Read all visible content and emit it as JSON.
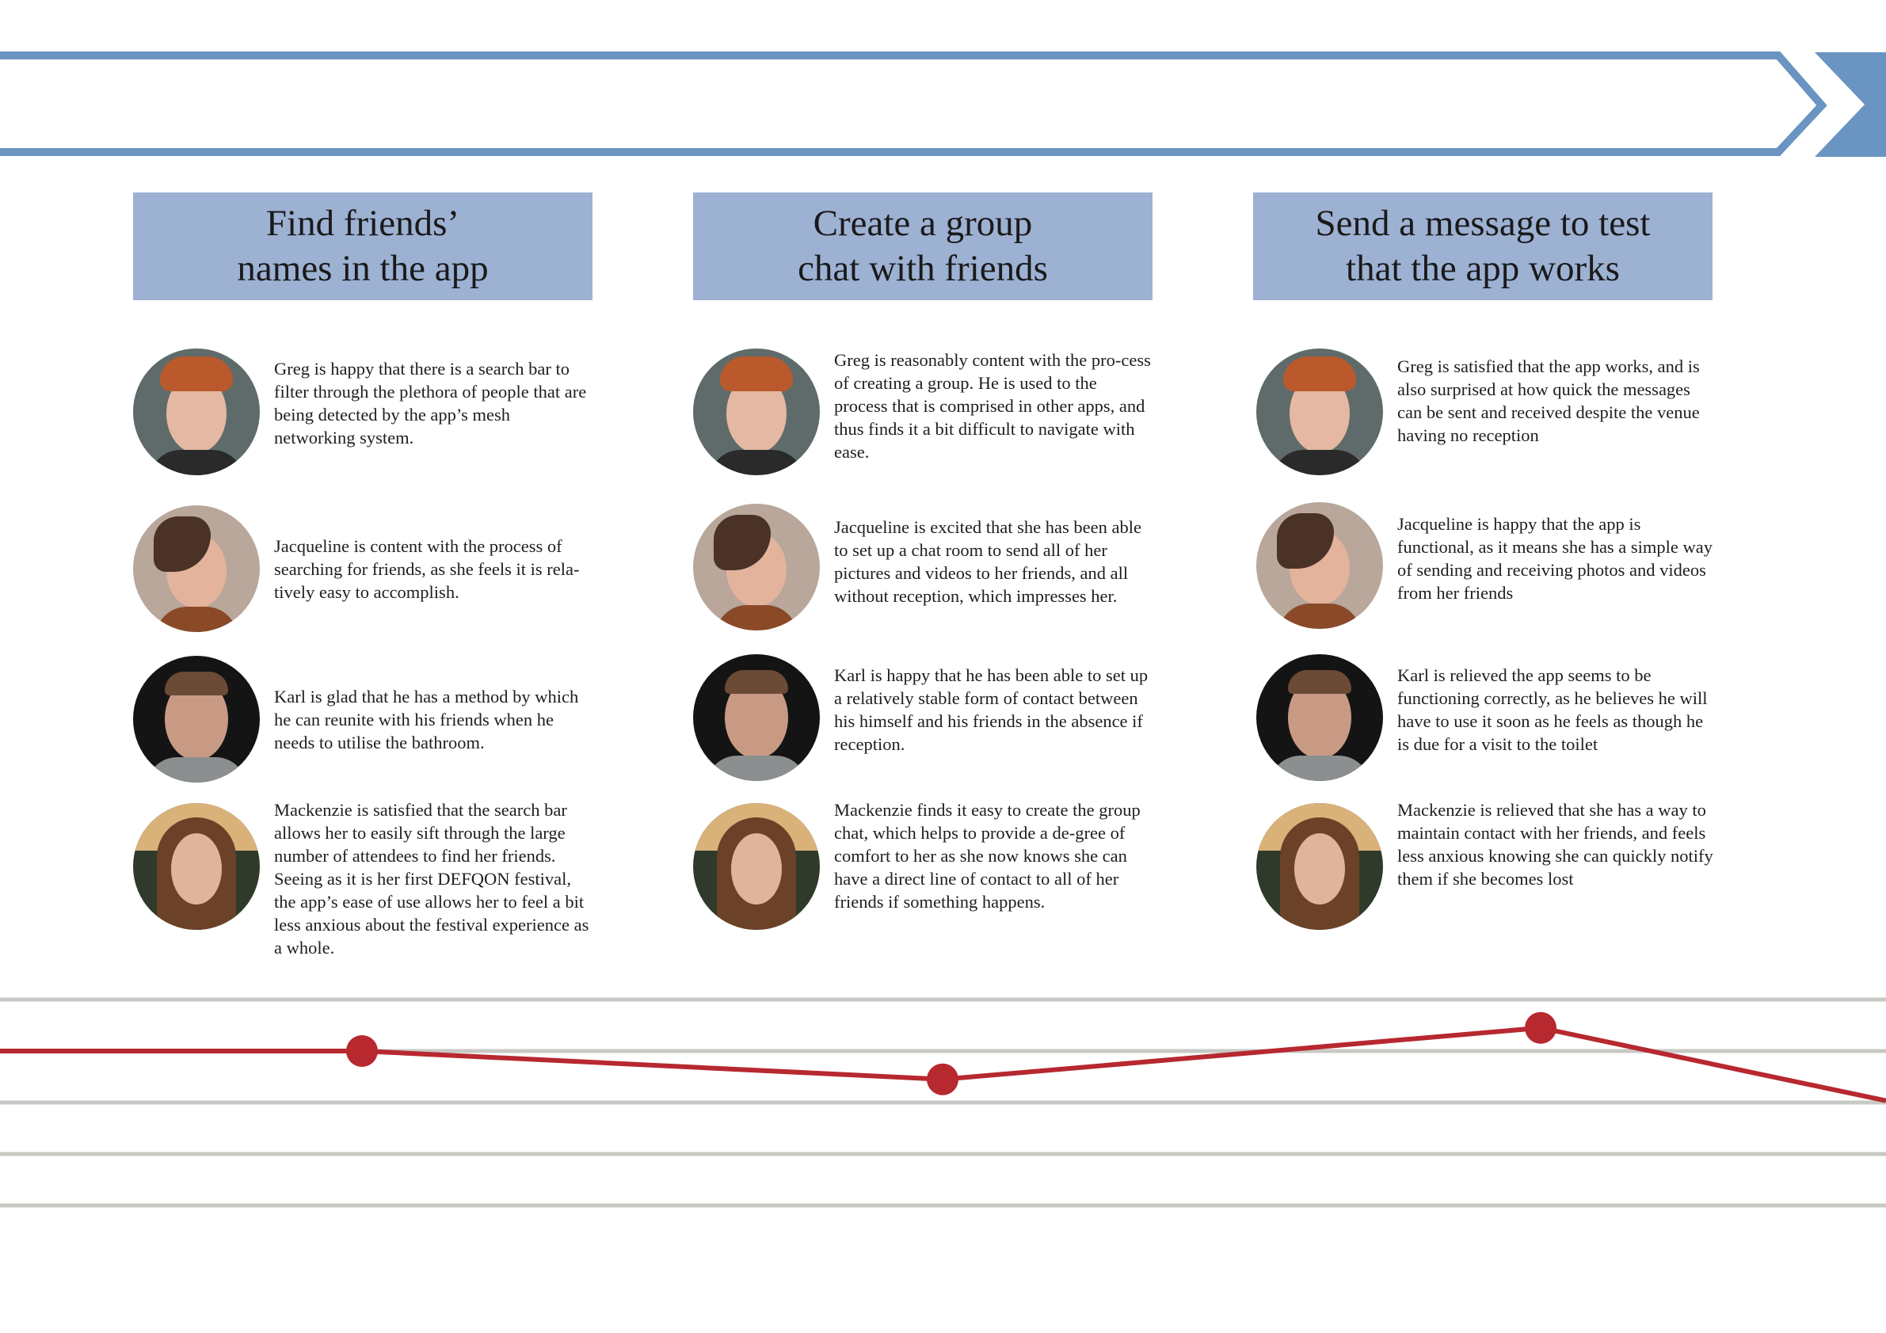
{
  "colors": {
    "banner": "#6a94c1",
    "header_fill": "#9db1d3",
    "line": "#b7282f",
    "gridline": "#c8c8c4"
  },
  "stages": [
    {
      "title": "Find friends’\nnames in the app",
      "personas": [
        {
          "name": "Greg",
          "icon": "greg-portrait",
          "text": "Greg is happy that there is a search bar to filter through the plethora of people that are being detected by the app’s mesh networking system."
        },
        {
          "name": "Jacqueline",
          "icon": "jacqueline-portrait",
          "text": "Jacqueline is content with the process of searching for friends, as she feels it is rela-tively easy to accomplish."
        },
        {
          "name": "Karl",
          "icon": "karl-portrait",
          "text": "Karl is glad that he has a method by which he can reunite with his friends when he needs to utilise the bathroom."
        },
        {
          "name": "Mackenzie",
          "icon": "mackenzie-portrait",
          "text": "Mackenzie is satisfied that the search bar allows her to easily sift through the large number of attendees to find her friends. Seeing as it is her first DEFQON festival, the app’s ease of use allows her to feel a bit less anxious about the festival experience as a whole."
        }
      ]
    },
    {
      "title": "Create a group\nchat with friends",
      "personas": [
        {
          "name": "Greg",
          "icon": "greg-portrait",
          "text": "Greg is reasonably content with the pro-cess of creating a group. He is used to the process that is comprised in other apps, and thus finds it a bit difficult to navigate with ease."
        },
        {
          "name": "Jacqueline",
          "icon": "jacqueline-portrait",
          "text": "Jacqueline is excited that she has been able to set up a chat room to send all of her pictures and videos to her friends, and all without reception, which impresses her."
        },
        {
          "name": "Karl",
          "icon": "karl-portrait",
          "text": "Karl is happy that he has been able to set up a relatively stable form of contact between his himself and his friends in the absence if reception."
        },
        {
          "name": "Mackenzie",
          "icon": "mackenzie-portrait",
          "text": "Mackenzie finds it easy to create the group chat, which helps to provide a de-gree of comfort to her as she now knows she can have a direct line of contact to all of her friends if something happens."
        }
      ]
    },
    {
      "title": "Send a message to test\nthat the app works",
      "personas": [
        {
          "name": "Greg",
          "icon": "greg-portrait",
          "text": "Greg is satisfied that the app works, and is also surprised at how quick the messages can be sent and received despite the venue having no reception"
        },
        {
          "name": "Jacqueline",
          "icon": "jacqueline-portrait",
          "text": "Jacqueline is happy that the app is functional, as it means she has a simple way of sending and receiving photos and videos from her friends"
        },
        {
          "name": "Karl",
          "icon": "karl-portrait",
          "text": "Karl is relieved the app seems to be functioning correctly, as he believes he will have to use it soon as he feels as though he is due for a visit to the toilet"
        },
        {
          "name": "Mackenzie",
          "icon": "mackenzie-portrait",
          "text": "Mackenzie is relieved that she has a way to maintain contact with her friends, and feels less anxious knowing she can quickly notify them if she becomes lost"
        }
      ]
    }
  ],
  "emotion_curve": {
    "type": "line",
    "categories": [
      "Find friends’ names in the app",
      "Create a group chat with friends",
      "Send a message to test that the app works"
    ],
    "values": [
      3.0,
      2.45,
      3.45
    ],
    "ylim": [
      0,
      4
    ],
    "gridlines": 5,
    "grid": true
  }
}
